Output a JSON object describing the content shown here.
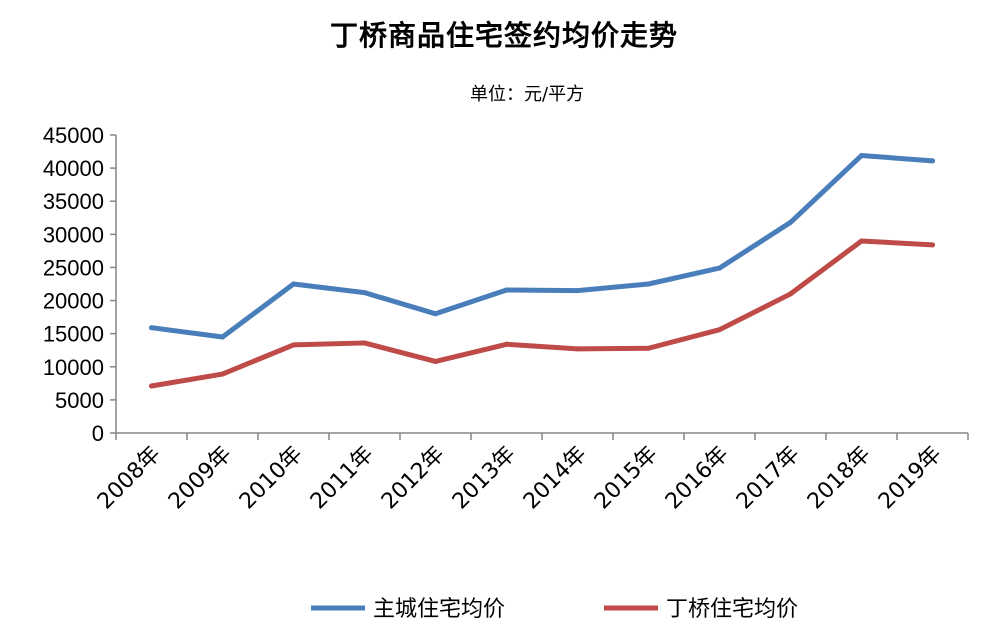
{
  "chart_data": {
    "type": "line",
    "title": "丁桥商品住宅签约均价走势",
    "subtitle": "单位：元/平方",
    "xlabel": "",
    "ylabel": "",
    "categories": [
      "2008年",
      "2009年",
      "2010年",
      "2011年",
      "2012年",
      "2013年",
      "2014年",
      "2015年",
      "2016年",
      "2017年",
      "2018年",
      "2019年"
    ],
    "ylim": [
      0,
      45000
    ],
    "yticks": [
      0,
      5000,
      10000,
      15000,
      20000,
      25000,
      30000,
      35000,
      40000,
      45000
    ],
    "grid": false,
    "legend_position": "bottom",
    "series": [
      {
        "name": "主城住宅均价",
        "color": "#4A7EBB",
        "values": [
          15900,
          14500,
          22500,
          21200,
          18000,
          21600,
          21500,
          22500,
          24900,
          31800,
          41900,
          41100
        ]
      },
      {
        "name": "丁桥住宅均价",
        "color": "#BE4B48",
        "values": [
          7100,
          8900,
          13300,
          13600,
          10800,
          13400,
          12700,
          12800,
          15600,
          21000,
          29000,
          28400
        ]
      }
    ]
  }
}
